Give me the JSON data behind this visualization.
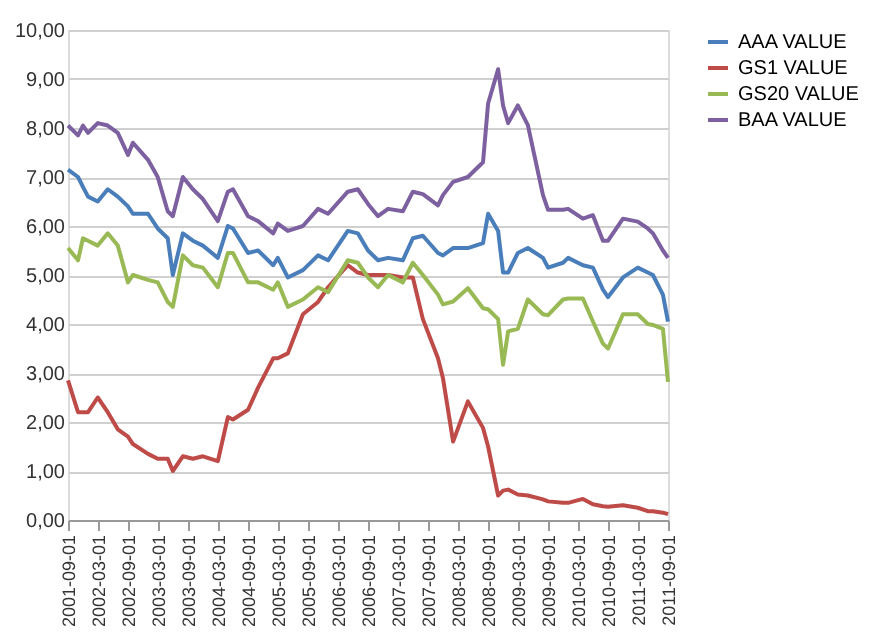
{
  "chart_data": {
    "type": "line",
    "x": [
      "2001-09",
      "2001-11",
      "2001-12",
      "2002-01",
      "2002-03",
      "2002-05",
      "2002-07",
      "2002-09",
      "2002-10",
      "2003-01",
      "2003-03",
      "2003-05",
      "2003-06",
      "2003-08",
      "2003-10",
      "2003-12",
      "2004-03",
      "2004-05",
      "2004-06",
      "2004-09",
      "2004-11",
      "2005-02",
      "2005-03",
      "2005-05",
      "2005-08",
      "2005-11",
      "2006-01",
      "2006-05",
      "2006-07",
      "2006-09",
      "2006-11",
      "2007-01",
      "2007-04",
      "2007-06",
      "2007-08",
      "2007-11",
      "2007-12",
      "2008-02",
      "2008-05",
      "2008-08",
      "2008-09",
      "2008-11",
      "2008-12",
      "2009-01",
      "2009-03",
      "2009-05",
      "2009-08",
      "2009-09",
      "2009-12",
      "2010-01",
      "2010-04",
      "2010-06",
      "2010-08",
      "2010-09",
      "2010-12",
      "2011-03",
      "2011-05",
      "2011-06",
      "2011-08",
      "2011-09"
    ],
    "series": [
      {
        "name": "AAA VALUE",
        "color": "#4a7ebb",
        "values": [
          7.15,
          7.0,
          6.8,
          6.6,
          6.5,
          6.75,
          6.6,
          6.4,
          6.25,
          6.25,
          5.95,
          5.75,
          5.0,
          5.85,
          5.7,
          5.6,
          5.35,
          6.0,
          5.95,
          5.45,
          5.5,
          5.2,
          5.35,
          4.95,
          5.1,
          5.4,
          5.3,
          5.9,
          5.85,
          5.5,
          5.3,
          5.35,
          5.3,
          5.75,
          5.8,
          5.45,
          5.4,
          5.55,
          5.55,
          5.65,
          6.25,
          5.9,
          5.05,
          5.05,
          5.45,
          5.55,
          5.35,
          5.15,
          5.25,
          5.35,
          5.2,
          5.15,
          4.7,
          4.55,
          4.95,
          5.15,
          5.05,
          5.0,
          4.6,
          4.05
        ]
      },
      {
        "name": "GS1 VALUE",
        "color": "#be4b48",
        "values": [
          2.85,
          2.2,
          2.2,
          2.2,
          2.5,
          2.2,
          1.85,
          1.7,
          1.55,
          1.35,
          1.25,
          1.25,
          1.0,
          1.3,
          1.25,
          1.3,
          1.2,
          2.1,
          2.05,
          2.25,
          2.7,
          3.3,
          3.3,
          3.4,
          4.2,
          4.45,
          4.75,
          5.2,
          5.05,
          5.0,
          5.0,
          5.0,
          4.95,
          4.95,
          4.1,
          3.3,
          2.9,
          1.6,
          2.42,
          1.88,
          1.5,
          0.5,
          0.6,
          0.62,
          0.52,
          0.5,
          0.42,
          0.38,
          0.35,
          0.35,
          0.43,
          0.32,
          0.28,
          0.27,
          0.3,
          0.25,
          0.18,
          0.18,
          0.15,
          0.12
        ]
      },
      {
        "name": "GS20 VALUE",
        "color": "#98b954",
        "values": [
          5.55,
          5.3,
          5.75,
          5.7,
          5.6,
          5.85,
          5.6,
          4.85,
          5.0,
          4.9,
          4.85,
          4.45,
          4.35,
          5.4,
          5.2,
          5.15,
          4.75,
          5.45,
          5.45,
          4.85,
          4.85,
          4.7,
          4.85,
          4.35,
          4.5,
          4.75,
          4.65,
          5.3,
          5.25,
          4.95,
          4.75,
          5.0,
          4.85,
          5.25,
          5.0,
          4.6,
          4.4,
          4.46,
          4.73,
          4.32,
          4.3,
          4.1,
          3.17,
          3.85,
          3.9,
          4.5,
          4.2,
          4.18,
          4.5,
          4.52,
          4.52,
          4.05,
          3.6,
          3.5,
          4.2,
          4.2,
          4.0,
          3.98,
          3.9,
          2.82
        ]
      },
      {
        "name": "BAA VALUE",
        "color": "#7d60a0",
        "values": [
          8.05,
          7.85,
          8.05,
          7.9,
          8.1,
          8.05,
          7.9,
          7.45,
          7.7,
          7.35,
          7.0,
          6.3,
          6.2,
          7.0,
          6.75,
          6.55,
          6.1,
          6.7,
          6.75,
          6.2,
          6.1,
          5.85,
          6.05,
          5.9,
          6.0,
          6.35,
          6.25,
          6.7,
          6.75,
          6.45,
          6.2,
          6.35,
          6.3,
          6.7,
          6.65,
          6.42,
          6.63,
          6.9,
          7.0,
          7.3,
          8.5,
          9.2,
          8.46,
          8.1,
          8.46,
          8.06,
          6.63,
          6.33,
          6.33,
          6.35,
          6.15,
          6.22,
          5.7,
          5.7,
          6.15,
          6.09,
          5.95,
          5.85,
          5.5,
          5.35
        ]
      }
    ],
    "xlim": [
      "2001-09-01",
      "2011-09-01"
    ],
    "xticks": [
      "2001-09-01",
      "2002-03-01",
      "2002-09-01",
      "2003-03-01",
      "2003-09-01",
      "2004-03-01",
      "2004-09-01",
      "2005-03-01",
      "2005-09-01",
      "2006-03-01",
      "2006-09-01",
      "2007-03-01",
      "2007-09-01",
      "2008-03-01",
      "2008-09-01",
      "2009-03-01",
      "2009-09-01",
      "2010-03-01",
      "2010-09-01",
      "2011-03-01",
      "2011-09-01"
    ],
    "ylim": [
      0,
      10
    ],
    "yticks": [
      {
        "value": 0,
        "label": "0,00"
      },
      {
        "value": 1,
        "label": "1,00"
      },
      {
        "value": 2,
        "label": "2,00"
      },
      {
        "value": 3,
        "label": "3,00"
      },
      {
        "value": 4,
        "label": "4,00"
      },
      {
        "value": 5,
        "label": "5,00"
      },
      {
        "value": 6,
        "label": "6,00"
      },
      {
        "value": 7,
        "label": "7,00"
      },
      {
        "value": 8,
        "label": "8,00"
      },
      {
        "value": 9,
        "label": "9,00"
      },
      {
        "value": 10,
        "label": "10,00"
      }
    ],
    "grid": "y",
    "legend": "right",
    "marker": "none",
    "line_style": "solid"
  }
}
